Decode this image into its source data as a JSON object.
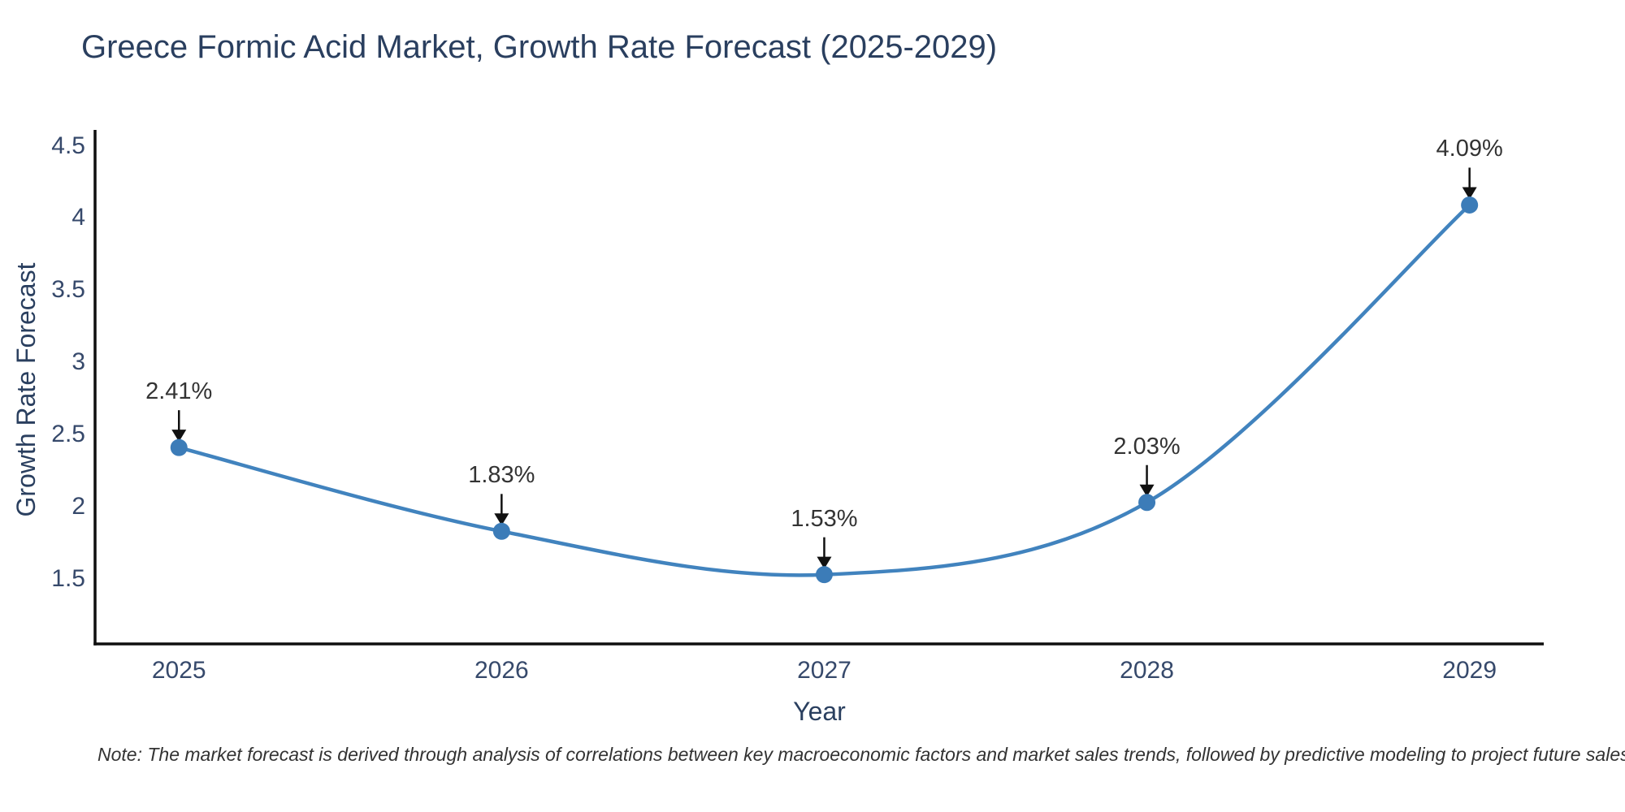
{
  "note": "Note: The market forecast is derived through analysis of correlations between key macroeconomic factors and market sales trends, followed by predictive modeling to project future sales",
  "chart_data": {
    "type": "line",
    "title": "Greece Formic Acid Market, Growth Rate Forecast (2025-2029)",
    "xlabel": "Year",
    "ylabel": "Growth Rate Forecast",
    "x": [
      2025,
      2026,
      2027,
      2028,
      2029
    ],
    "values": [
      2.41,
      1.83,
      1.53,
      2.03,
      4.09
    ],
    "point_labels": [
      "2.41%",
      "1.83%",
      "1.53%",
      "2.03%",
      "4.09%"
    ],
    "xticks": [
      "2025",
      "2026",
      "2027",
      "2028",
      "2029"
    ],
    "yticks": [
      1.5,
      2,
      2.5,
      3,
      3.5,
      4,
      4.5
    ],
    "xlim": [
      2024.74,
      2029.23
    ],
    "ylim": [
      1.05,
      4.61
    ],
    "grid": false,
    "line_shape": "spline",
    "legend": "none",
    "line_color": "#4183be",
    "marker_color": "#3c7cb8",
    "axis_color": "#0f0f0f",
    "arrow_color": "#111111",
    "title_color": "#2a3f5f"
  }
}
